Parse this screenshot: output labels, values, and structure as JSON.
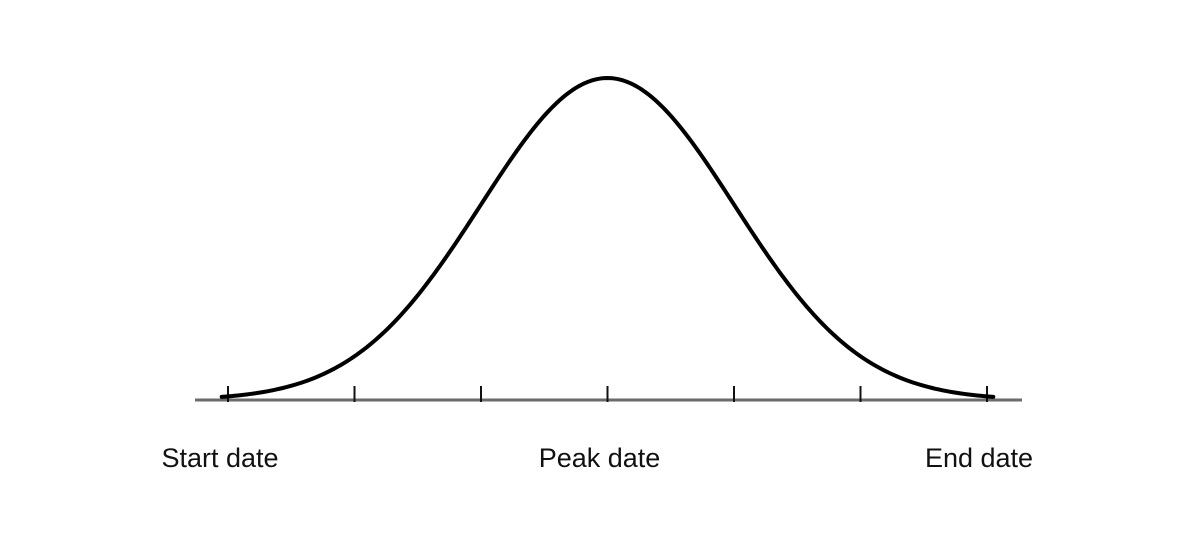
{
  "chart_data": {
    "type": "line",
    "title": "",
    "xlabel": "",
    "ylabel": "",
    "x": [
      -3,
      -2.5,
      -2,
      -1.5,
      -1,
      -0.5,
      0,
      0.5,
      1,
      1.5,
      2,
      2.5,
      3
    ],
    "series": [
      {
        "values": [
          0.011,
          0.044,
          0.135,
          0.325,
          0.607,
          0.882,
          1.0,
          0.882,
          0.607,
          0.325,
          0.135,
          0.044,
          0.011
        ]
      }
    ],
    "xlim": [
      -3.1,
      3.3
    ],
    "ylim": [
      0,
      1
    ],
    "tick_count": 7,
    "grid": false,
    "legend": "none",
    "labels": [
      {
        "text": "Start date",
        "x": -3
      },
      {
        "text": "Peak date",
        "x": 0
      },
      {
        "text": "End date",
        "x": 3
      }
    ],
    "colors": {
      "curve": "#000000",
      "axis": "#6b6b6b"
    }
  }
}
